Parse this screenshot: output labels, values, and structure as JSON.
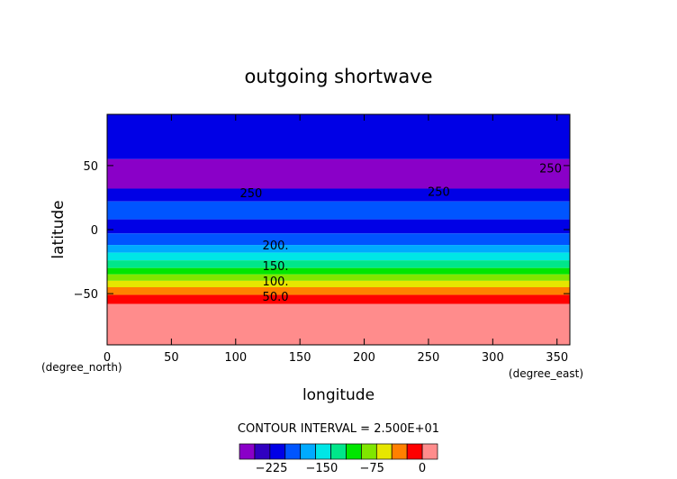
{
  "chart_data": {
    "type": "heatmap",
    "title": "outgoing shortwave",
    "xlabel": "longitude",
    "ylabel": "latitude",
    "x_units": "(degree_east)",
    "y_units": "(degree_north)",
    "xlim": [
      0,
      360
    ],
    "ylim": [
      -90,
      90
    ],
    "x_ticks": [
      0,
      50,
      100,
      150,
      200,
      250,
      300,
      350
    ],
    "y_ticks": [
      -50,
      0,
      50
    ],
    "contour_interval_text": "CONTOUR INTERVAL = 2.500E+01",
    "color_levels": [
      -250,
      -225,
      -200,
      -175,
      -150,
      -125,
      -100,
      -75,
      -50,
      -25,
      0
    ],
    "colorbar_ticks": [
      -225,
      -150,
      -75,
      0
    ],
    "colorbar_colors": [
      "#8a00c8",
      "#3000c0",
      "#0000e6",
      "#0055ff",
      "#00aaff",
      "#00e6e6",
      "#00e68a",
      "#00e600",
      "#80e600",
      "#e6e600",
      "#ff8000",
      "#ff0000",
      "#ff8c8c"
    ],
    "latitude_bands": [
      {
        "lat": [
          55,
          90
        ],
        "color": "#0000e6"
      },
      {
        "lat": [
          32,
          55
        ],
        "color": "#8a00c8"
      },
      {
        "lat": [
          22,
          32
        ],
        "color": "#0000e6"
      },
      {
        "lat": [
          8,
          22
        ],
        "color": "#0055ff"
      },
      {
        "lat": [
          -3,
          8
        ],
        "color": "#0000e6"
      },
      {
        "lat": [
          -12,
          -3
        ],
        "color": "#0055ff"
      },
      {
        "lat": [
          -18,
          -12
        ],
        "color": "#00aaff"
      },
      {
        "lat": [
          -24,
          -18
        ],
        "color": "#00e6e6"
      },
      {
        "lat": [
          -30,
          -24
        ],
        "color": "#00e68a"
      },
      {
        "lat": [
          -35,
          -30
        ],
        "color": "#00e600"
      },
      {
        "lat": [
          -40,
          -35
        ],
        "color": "#80e600"
      },
      {
        "lat": [
          -45,
          -40
        ],
        "color": "#e6e600"
      },
      {
        "lat": [
          -51,
          -45
        ],
        "color": "#ff8000"
      },
      {
        "lat": [
          -58,
          -51
        ],
        "color": "#ff0000"
      },
      {
        "lat": [
          -90,
          -58
        ],
        "color": "#ff8c8c"
      }
    ],
    "contour_labels": [
      {
        "text": "200.",
        "lon": 131,
        "lat": -12
      },
      {
        "text": "150.",
        "lon": 131,
        "lat": -28
      },
      {
        "text": "100.",
        "lon": 131,
        "lat": -40
      },
      {
        "text": "50.0",
        "lon": 131,
        "lat": -52
      },
      {
        "text": "250",
        "lon": 112,
        "lat": 29
      },
      {
        "text": "250",
        "lon": 258,
        "lat": 30
      },
      {
        "text": "250",
        "lon": 345,
        "lat": 48
      }
    ]
  }
}
